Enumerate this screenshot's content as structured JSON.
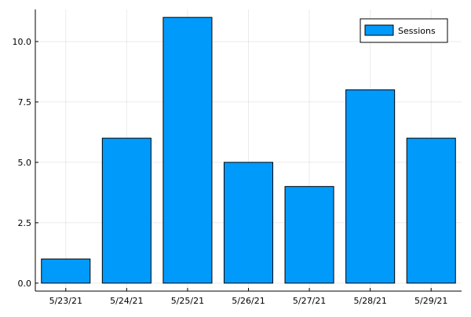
{
  "chart_data": {
    "type": "bar",
    "categories": [
      "5/23/21",
      "5/24/21",
      "5/25/21",
      "5/26/21",
      "5/27/21",
      "5/28/21",
      "5/29/21"
    ],
    "series": [
      {
        "name": "Sessions",
        "values": [
          1,
          6,
          11,
          5,
          4,
          8,
          6
        ],
        "color": "#009AFA"
      }
    ],
    "yticks": [
      "0.0",
      "2.5",
      "5.0",
      "7.5",
      "10.0"
    ],
    "ylim": [
      -0.33,
      11.33
    ],
    "grid": true,
    "legend_position": "top-right"
  }
}
